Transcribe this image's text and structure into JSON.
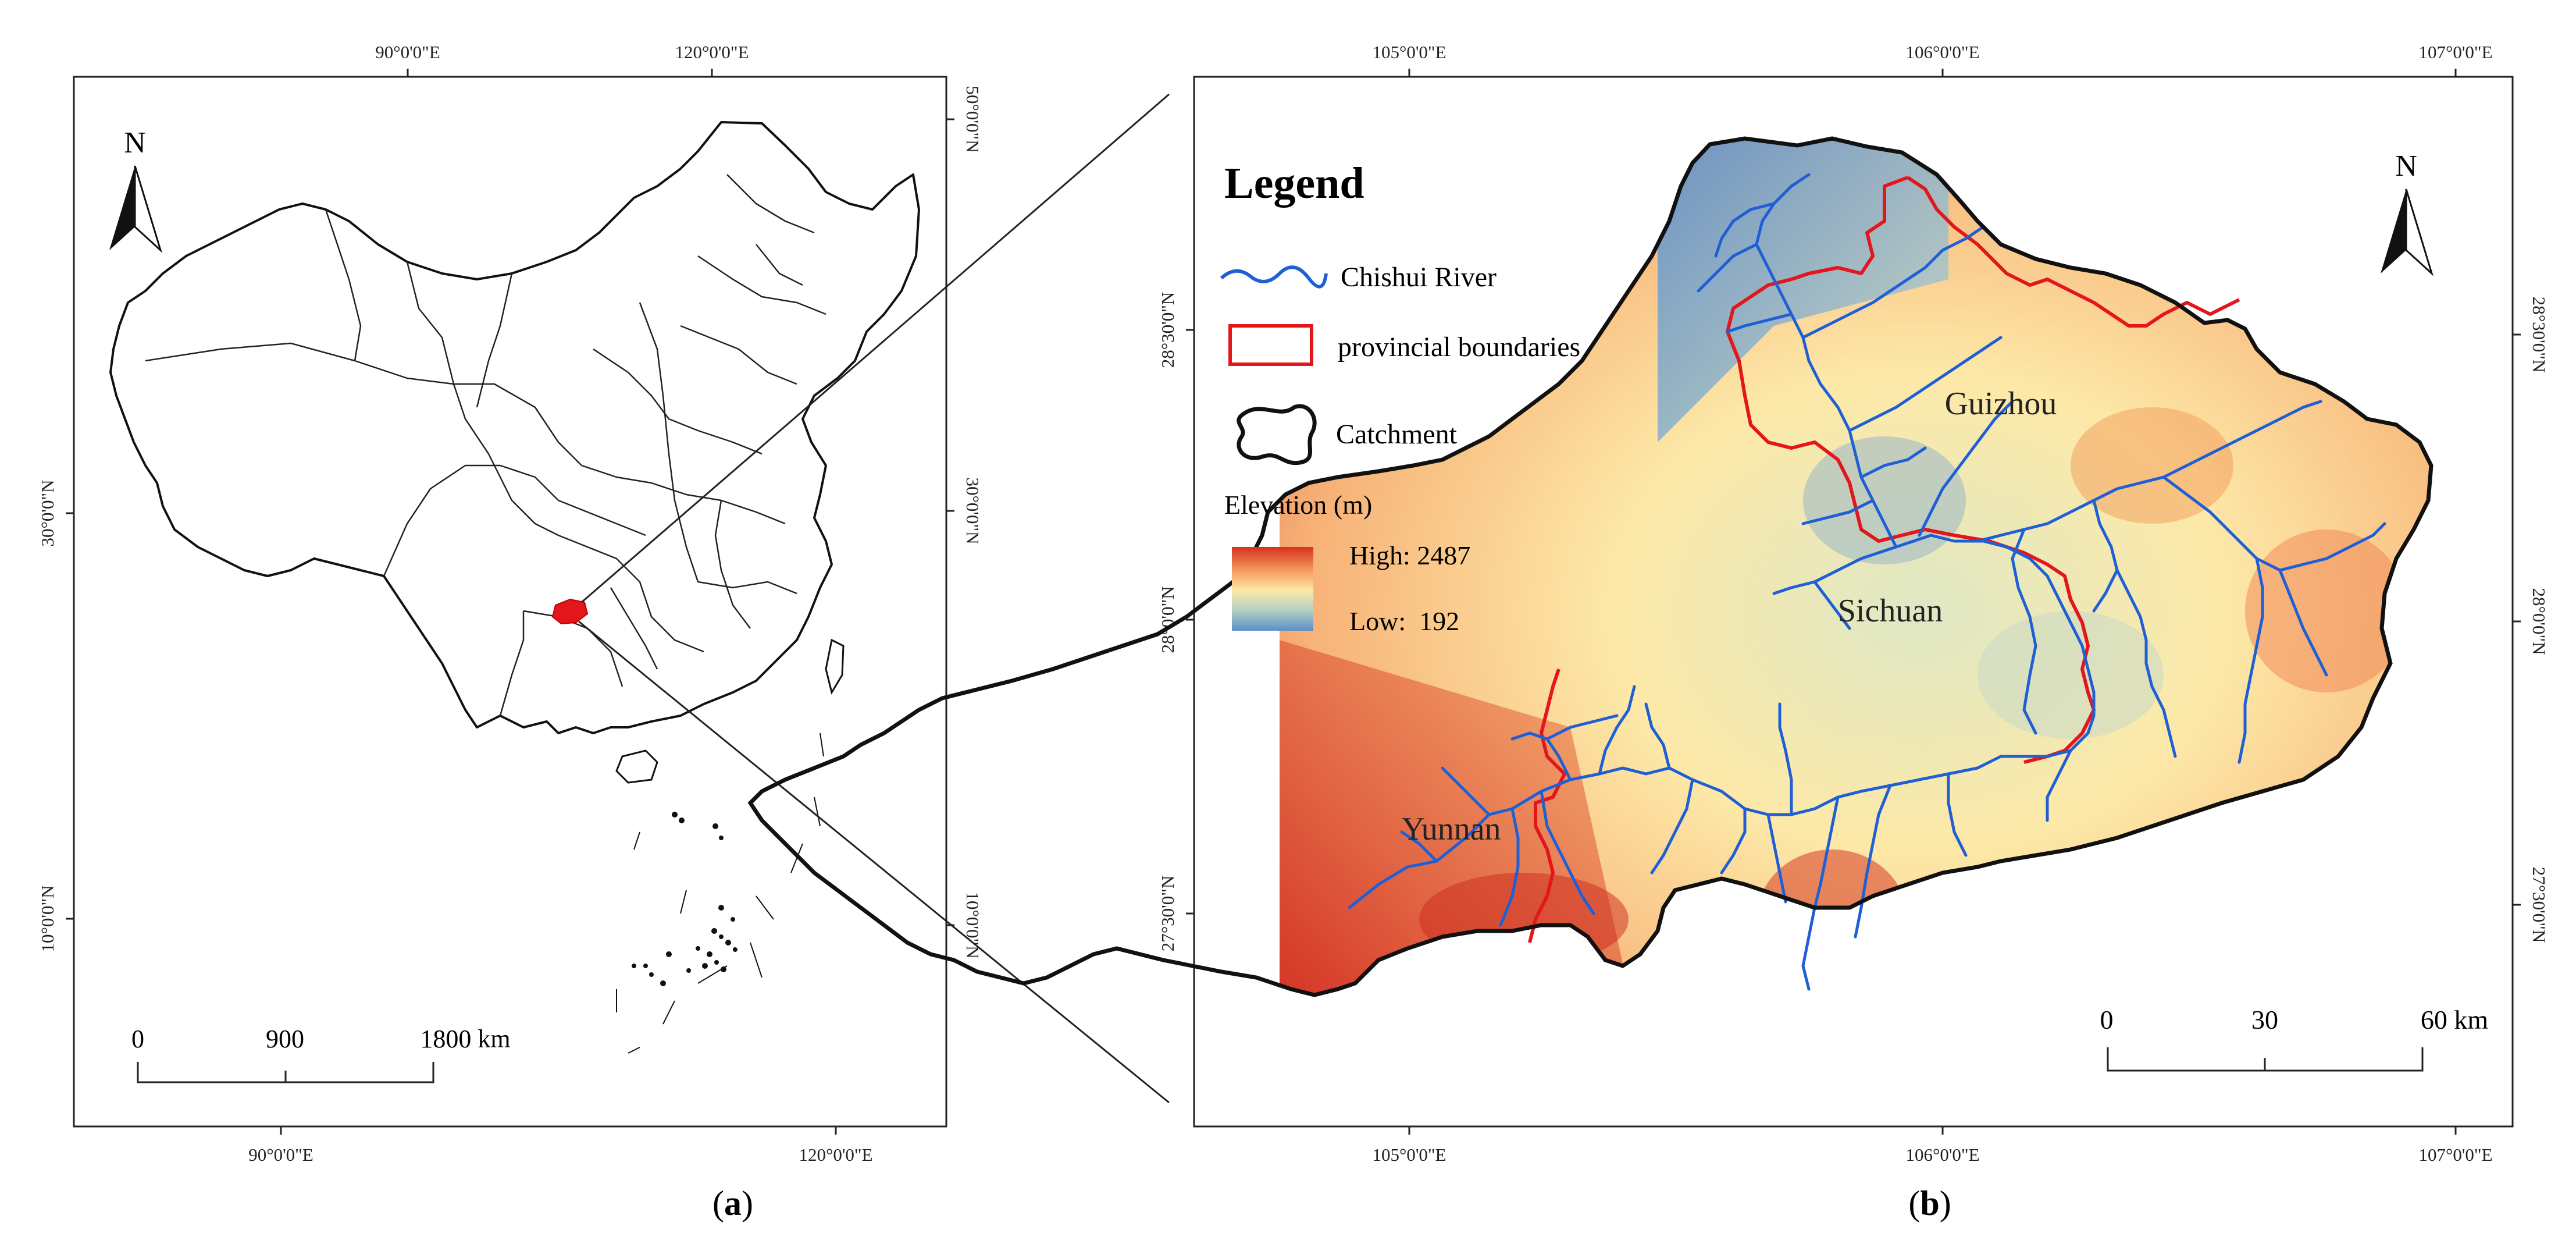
{
  "panel_a": {
    "caption_open": "(",
    "caption_letter": "a",
    "caption_close": ")",
    "north_label": "N",
    "top_ticks": [
      "90°0'0\"E",
      "120°0'0\"E"
    ],
    "bottom_ticks": [
      "90°0'0\"E",
      "120°0'0\"E"
    ],
    "left_ticks": [
      "30°0'0\"N",
      "10°0'0\"N"
    ],
    "right_ticks": [
      "50°0'0\"N",
      "30°0'0\"N",
      "10°0'0\"N"
    ],
    "scale_labels": [
      "0",
      "900",
      "1800 km"
    ]
  },
  "panel_b": {
    "caption_open": "(",
    "caption_letter": "b",
    "caption_close": ")",
    "north_label": "N",
    "top_ticks": [
      "105°0'0\"E",
      "106°0'0\"E",
      "107°0'0\"E"
    ],
    "bottom_ticks": [
      "105°0'0\"E",
      "106°0'0\"E",
      "107°0'0\"E"
    ],
    "left_ticks": [
      "28°30'0\"N",
      "28°0'0\"N",
      "27°30'0\"N"
    ],
    "right_ticks": [
      "28°30'0\"N",
      "28°0'0\"N",
      "27°30'0\"N"
    ],
    "scale_labels": [
      "0",
      "30",
      "60 km"
    ],
    "legend": {
      "title": "Legend",
      "river_label": "Chishui River",
      "boundary_label": "provincial boundaries",
      "catchment_label": "Catchment",
      "elevation_title": "Elevation (m)",
      "high_label": "High: 2487",
      "low_label": "Low:  192"
    },
    "place_labels": [
      "Guizhou",
      "Sichuan",
      "Yunnan"
    ]
  },
  "colors": {
    "river": "#1f5fd6",
    "boundary": "#e3161c",
    "elev_high": "#d7301f",
    "elev_mid": "#fde9a8",
    "elev_low": "#5b8ecb",
    "highlight": "#e3161c"
  }
}
